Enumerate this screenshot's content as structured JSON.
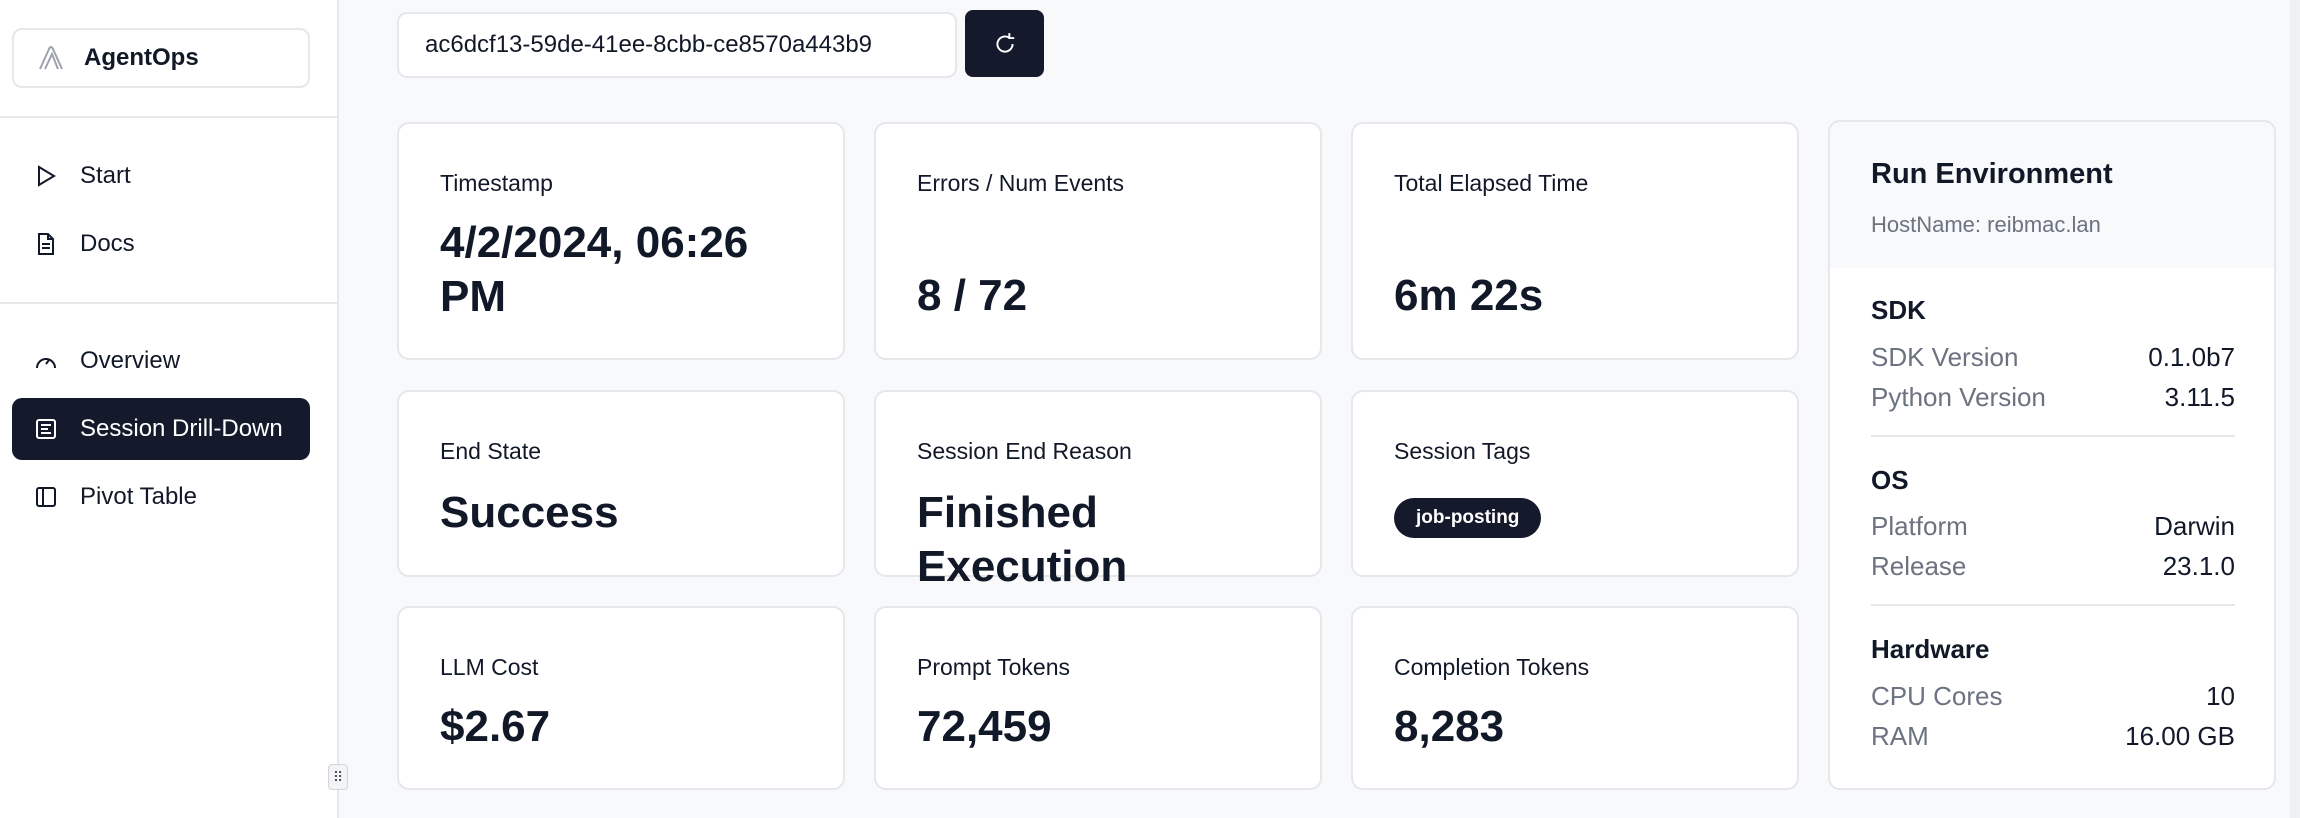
{
  "sidebar": {
    "brand": "AgentOps",
    "items": [
      {
        "label": "Start",
        "icon": "play-icon"
      },
      {
        "label": "Docs",
        "icon": "document-icon"
      },
      {
        "label": "Overview",
        "icon": "gauge-icon"
      },
      {
        "label": "Session Drill-Down",
        "icon": "list-icon",
        "active": true
      },
      {
        "label": "Pivot Table",
        "icon": "panel-icon"
      }
    ]
  },
  "session": {
    "id": "ac6dcf13-59de-41ee-8cbb-ce8570a443b9",
    "refresh_icon": "refresh-icon"
  },
  "cards": [
    {
      "label": "Timestamp",
      "value": "4/2/2024, 06:26 PM"
    },
    {
      "label": "Errors / Num Events",
      "value": "8 / 72"
    },
    {
      "label": "Total Elapsed Time",
      "value": "6m 22s"
    },
    {
      "label": "End State",
      "value": "Success"
    },
    {
      "label": "Session End Reason",
      "value": "Finished Execution"
    },
    {
      "label": "Session Tags",
      "tags": [
        "job-posting"
      ]
    },
    {
      "label": "LLM Cost",
      "value": "$2.67"
    },
    {
      "label": "Prompt Tokens",
      "value": "72,459"
    },
    {
      "label": "Completion Tokens",
      "value": "8,283"
    }
  ],
  "env": {
    "title": "Run Environment",
    "hostname": "HostName: reibmac.lan",
    "sdk": {
      "title": "SDK",
      "rows": [
        {
          "k": "SDK Version",
          "v": "0.1.0b7"
        },
        {
          "k": "Python Version",
          "v": "3.11.5"
        }
      ]
    },
    "os": {
      "title": "OS",
      "rows": [
        {
          "k": "Platform",
          "v": "Darwin"
        },
        {
          "k": "Release",
          "v": "23.1.0"
        }
      ]
    },
    "hardware": {
      "title": "Hardware",
      "rows": [
        {
          "k": "CPU Cores",
          "v": "10"
        },
        {
          "k": "RAM",
          "v": "16.00 GB"
        }
      ]
    }
  },
  "colors": {
    "primary": "#141a2b",
    "muted": "#6b7280",
    "border": "#e5e7eb"
  }
}
